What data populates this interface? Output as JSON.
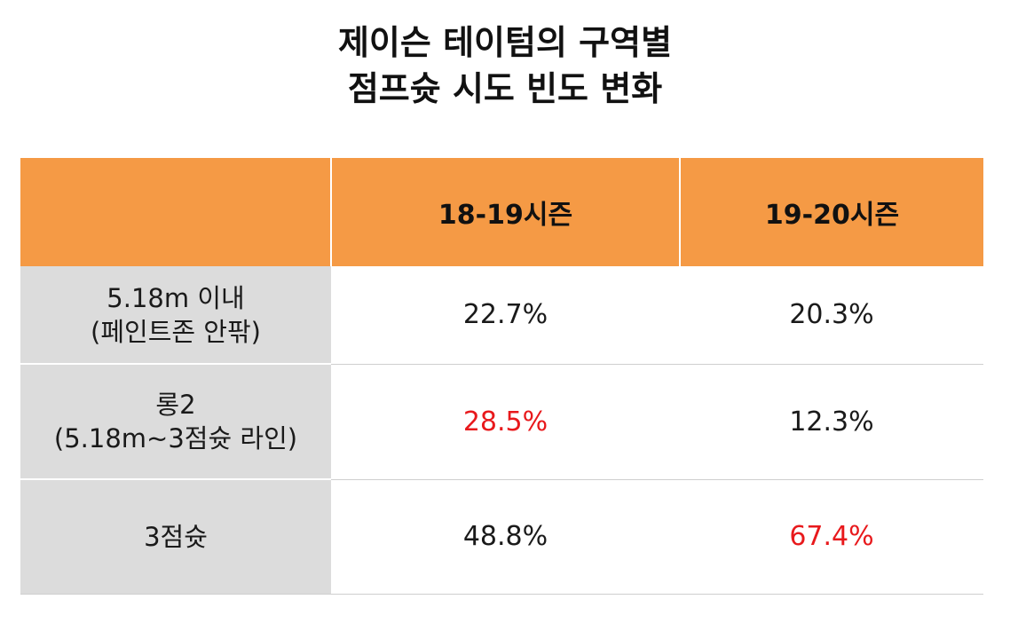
{
  "title_line1": "제이슨 테이텀의 구역별",
  "title_line2": "점프슛 시도 빈도 변화",
  "header": [
    "",
    "18-19시즌",
    "19-20시즌"
  ],
  "highlight_color": "#e8191c",
  "header_color": "#f59a45",
  "rows": [
    {
      "label_line1": "5.18m 이내",
      "label_line2": "(페인트존 안팎)",
      "v1": "22.7%",
      "v2": "20.3%"
    },
    {
      "label_line1": "롱2",
      "label_line2": "(5.18m~3점슛 라인)",
      "v1": "28.5%",
      "v2": "12.3%"
    },
    {
      "label_line1": "3점슛",
      "label_line2": "",
      "v1": "48.8%",
      "v2": "67.4%"
    }
  ],
  "chart_data": {
    "type": "table",
    "title": "제이슨 테이텀의 구역별 점프슛 시도 빈도 변화",
    "columns": [
      "18-19시즌",
      "19-20시즌"
    ],
    "categories": [
      "5.18m 이내 (페인트존 안팎)",
      "롱2 (5.18m~3점슛 라인)",
      "3점슛"
    ],
    "series": [
      {
        "name": "18-19시즌",
        "values": [
          22.7,
          28.5,
          48.8
        ]
      },
      {
        "name": "19-20시즌",
        "values": [
          20.3,
          12.3,
          67.4
        ]
      }
    ],
    "highlighted_cells": [
      "롱2 / 18-19시즌",
      "3점슛 / 19-20시즌"
    ]
  }
}
